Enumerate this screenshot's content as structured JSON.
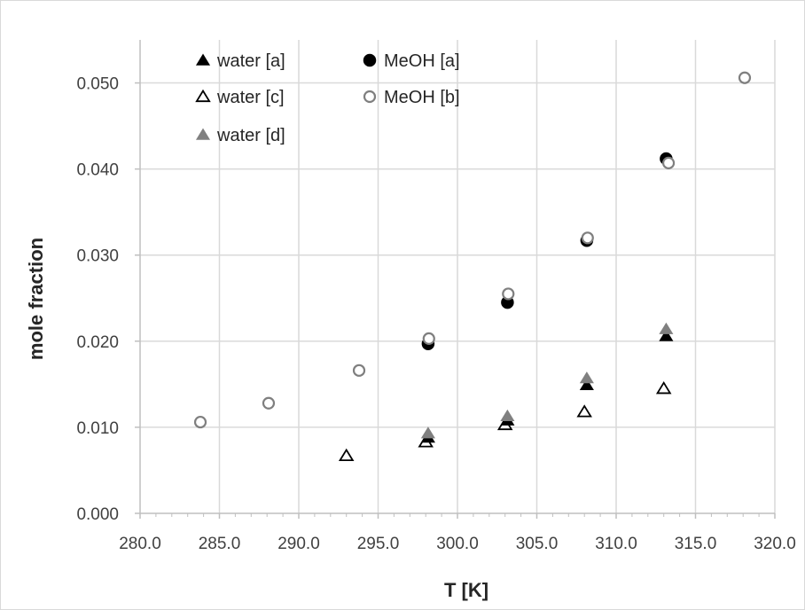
{
  "chart_data": {
    "type": "scatter",
    "xlabel": "T [K]",
    "ylabel": "mole fraction",
    "xlim": [
      280.0,
      320.0
    ],
    "ylim": [
      0.0,
      0.055
    ],
    "x_ticks": [
      280.0,
      285.0,
      290.0,
      295.0,
      300.0,
      305.0,
      310.0,
      315.0,
      320.0
    ],
    "y_ticks": [
      0.0,
      0.01,
      0.02,
      0.03,
      0.04,
      0.05
    ],
    "x_tick_labels": [
      "280.0",
      "285.0",
      "290.0",
      "295.0",
      "300.0",
      "305.0",
      "310.0",
      "315.0",
      "320.0"
    ],
    "y_tick_labels": [
      "0.000",
      "0.010",
      "0.020",
      "0.030",
      "0.040",
      "0.050"
    ],
    "grid": true,
    "legend_position": "top-left-inside",
    "series": [
      {
        "name": "water [a]",
        "marker": "triangle-filled",
        "color": "#000000",
        "x": [
          298.15,
          303.15,
          308.15,
          313.15
        ],
        "y": [
          0.0088,
          0.0108,
          0.0149,
          0.0206
        ]
      },
      {
        "name": "MeOH [a]",
        "marker": "circle-filled",
        "color": "#000000",
        "x": [
          298.15,
          303.15,
          308.15,
          313.15
        ],
        "y": [
          0.0197,
          0.0245,
          0.0317,
          0.0412
        ]
      },
      {
        "name": "water [c]",
        "marker": "triangle-open",
        "color": "#000000",
        "x": [
          293.0,
          298.0,
          303.0,
          308.0,
          313.0
        ],
        "y": [
          0.0067,
          0.0083,
          0.0103,
          0.0118,
          0.0145
        ]
      },
      {
        "name": "MeOH [b]",
        "marker": "circle-open",
        "color": "#7f7f7f",
        "x": [
          283.8,
          288.1,
          293.8,
          298.2,
          303.2,
          308.2,
          313.3,
          318.1
        ],
        "y": [
          0.0106,
          0.0128,
          0.0166,
          0.0203,
          0.0255,
          0.032,
          0.0407,
          0.0506
        ]
      },
      {
        "name": "water [d]",
        "marker": "triangle-filled",
        "color": "#808080",
        "x": [
          298.15,
          303.15,
          308.15,
          313.15
        ],
        "y": [
          0.0093,
          0.0113,
          0.0157,
          0.0214
        ]
      }
    ]
  }
}
